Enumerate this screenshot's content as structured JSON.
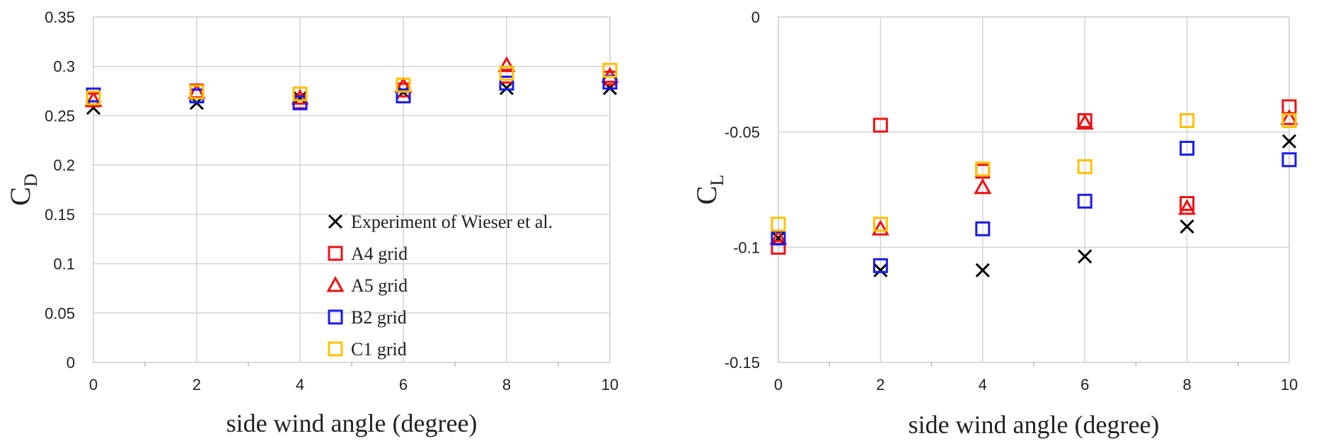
{
  "chart_data": [
    {
      "type": "scatter",
      "id": "left",
      "ylabel_main": "C",
      "ylabel_sub": "D",
      "xlabel": "side wind angle (degree)",
      "xlim": [
        0,
        10
      ],
      "ylim": [
        0,
        0.35
      ],
      "xticks": [
        0,
        2,
        4,
        6,
        8,
        10
      ],
      "xtick_labels": [
        "0",
        "2",
        "4",
        "6",
        "8",
        "10"
      ],
      "yticks": [
        0,
        0.05,
        0.1,
        0.15,
        0.2,
        0.25,
        0.3,
        0.35
      ],
      "ytick_labels": [
        "0",
        "0.05",
        "0.1",
        "0.15",
        "0.2",
        "0.25",
        "0.3",
        "0.35"
      ],
      "grid": true,
      "legend": "bottom-right",
      "series": [
        {
          "name": "Experiment of Wieser et al.",
          "marker": "x",
          "color": "#000000",
          "x": [
            0,
            2,
            4,
            6,
            8,
            10
          ],
          "y": [
            0.258,
            0.263,
            0.268,
            0.274,
            0.278,
            0.278
          ]
        },
        {
          "name": "A4 grid",
          "marker": "square",
          "color": "#ee1111",
          "x": [
            0,
            2,
            4,
            6,
            8,
            10
          ],
          "y": [
            0.266,
            0.275,
            0.264,
            0.276,
            0.29,
            0.288
          ]
        },
        {
          "name": "A5 grid",
          "marker": "triangle",
          "color": "#ee1111",
          "x": [
            0,
            2,
            4,
            6,
            8,
            10
          ],
          "y": [
            0.266,
            0.274,
            0.268,
            0.28,
            0.301,
            0.29
          ]
        },
        {
          "name": "B2 grid",
          "marker": "square",
          "color": "#1a1aee",
          "x": [
            0,
            2,
            4,
            6,
            8,
            10
          ],
          "y": [
            0.271,
            0.27,
            0.263,
            0.27,
            0.283,
            0.284
          ]
        },
        {
          "name": "C1 grid",
          "marker": "square",
          "color": "#ffc000",
          "x": [
            0,
            2,
            4,
            6,
            8,
            10
          ],
          "y": [
            0.268,
            0.274,
            0.272,
            0.281,
            0.293,
            0.296
          ]
        }
      ]
    },
    {
      "type": "scatter",
      "id": "right",
      "ylabel_main": "C",
      "ylabel_sub": "L",
      "xlabel": "side wind angle (degree)",
      "xlim": [
        0,
        10
      ],
      "ylim": [
        -0.15,
        0
      ],
      "xticks": [
        0,
        2,
        4,
        6,
        8,
        10
      ],
      "xtick_labels": [
        "0",
        "2",
        "4",
        "6",
        "8",
        "10"
      ],
      "yticks": [
        -0.15,
        -0.1,
        -0.05,
        0
      ],
      "ytick_labels": [
        "-0.15",
        "-0.1",
        "-0.05",
        "0"
      ],
      "grid": true,
      "series": [
        {
          "name": "Experiment of Wieser et al.",
          "marker": "x",
          "color": "#000000",
          "x": [
            0,
            2,
            4,
            6,
            8,
            10
          ],
          "y": [
            -0.096,
            -0.11,
            -0.11,
            -0.104,
            -0.091,
            -0.054
          ]
        },
        {
          "name": "A4 grid",
          "marker": "square",
          "color": "#ee1111",
          "x": [
            0,
            2,
            4,
            6,
            8,
            10
          ],
          "y": [
            -0.1,
            -0.047,
            -0.067,
            -0.045,
            -0.081,
            -0.039
          ]
        },
        {
          "name": "A5 grid",
          "marker": "triangle",
          "color": "#ee1111",
          "x": [
            0,
            2,
            4,
            6,
            8,
            10
          ],
          "y": [
            -0.096,
            -0.092,
            -0.074,
            -0.046,
            -0.083,
            -0.044
          ]
        },
        {
          "name": "B2 grid",
          "marker": "square",
          "color": "#1a1aee",
          "x": [
            0,
            2,
            4,
            6,
            8,
            10
          ],
          "y": [
            -0.096,
            -0.108,
            -0.092,
            -0.08,
            -0.057,
            -0.062
          ]
        },
        {
          "name": "C1 grid",
          "marker": "square",
          "color": "#ffc000",
          "x": [
            0,
            2,
            4,
            6,
            8,
            10
          ],
          "y": [
            -0.09,
            -0.09,
            -0.066,
            -0.065,
            -0.045,
            -0.045
          ]
        }
      ]
    }
  ]
}
